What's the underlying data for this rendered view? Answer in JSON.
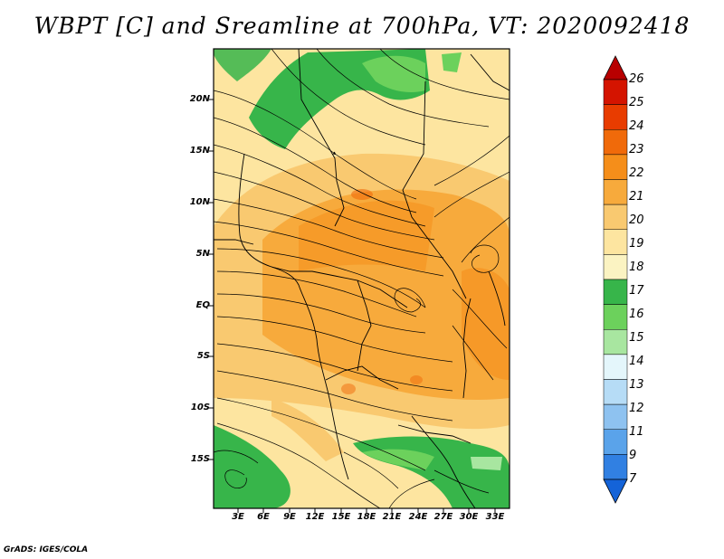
{
  "title": "WBPT [C] and Sreamline at 700hPa, VT: 2020092418",
  "credit": "GrADS: IGES/COLA",
  "map": {
    "lat_labels": [
      "20N",
      "15N",
      "10N",
      "5N",
      "EQ",
      "5S",
      "10S",
      "15S"
    ],
    "lon_labels": [
      "3E",
      "6E",
      "9E",
      "12E",
      "15E",
      "18E",
      "21E",
      "24E",
      "27E",
      "30E",
      "33E"
    ]
  },
  "colorbar": {
    "labels": [
      "26",
      "25",
      "24",
      "23",
      "22",
      "21",
      "20",
      "19",
      "18",
      "17",
      "16",
      "15",
      "14",
      "13",
      "12",
      "11",
      "9",
      "7"
    ],
    "colors": [
      "#b80000",
      "#d41400",
      "#e83c00",
      "#f06a0a",
      "#f58e1a",
      "#f7aa3c",
      "#f9c970",
      "#fde5a0",
      "#fbf3c2",
      "#37b54a",
      "#6cd15c",
      "#a8e6a0",
      "#e4f6fb",
      "#b6dcf6",
      "#8ec2f0",
      "#5aa3ea",
      "#3180e2",
      "#1463d8"
    ]
  }
}
